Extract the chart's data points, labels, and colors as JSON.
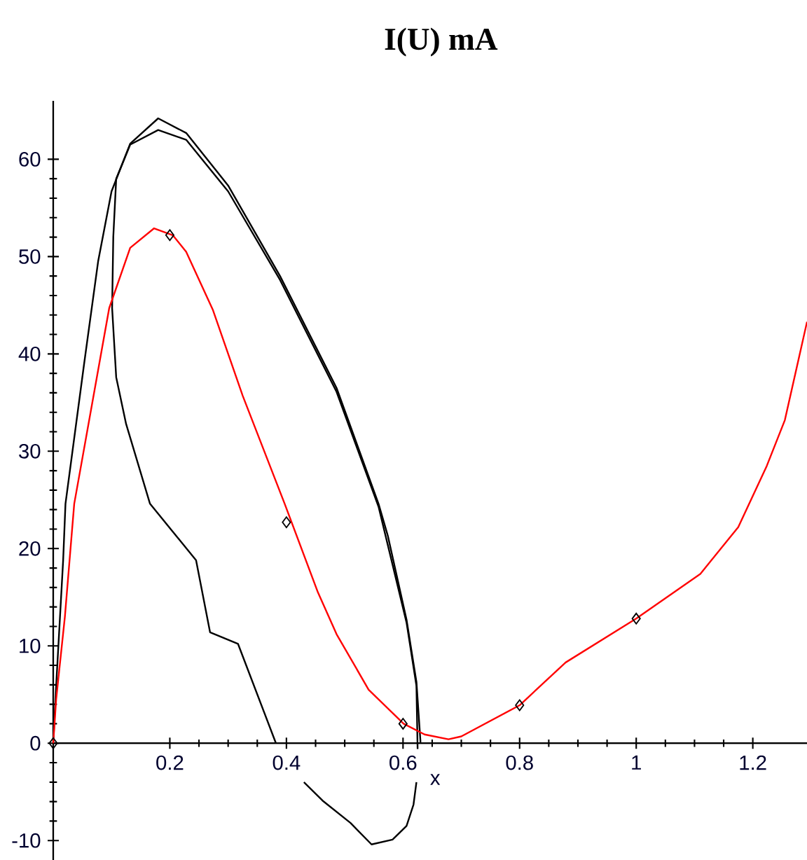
{
  "chart_data": {
    "type": "line",
    "title": "**I(U) mA**",
    "xlabel": "x",
    "xlim": [
      0,
      1.3
    ],
    "ylim": [
      -12,
      66
    ],
    "xticks": [
      0.2,
      0.4,
      0.6,
      0.8,
      1,
      1.2
    ],
    "yticks": [
      -10,
      0,
      10,
      20,
      30,
      40,
      50,
      60
    ],
    "series": [
      {
        "color": "#000000",
        "x": [
          0,
          0.005,
          0.017,
          0.021,
          0.053,
          0.077,
          0.1,
          0.132,
          0.18,
          0.228,
          0.3,
          0.389,
          0.486,
          0.558,
          0.574,
          0.606,
          0.623,
          0.63
        ],
        "values": [
          0,
          5.9,
          18.8,
          24.6,
          39,
          49.5,
          56.7,
          61.6,
          64.2,
          62.7,
          57.3,
          48,
          36.5,
          24.6,
          21.3,
          12.7,
          6.3,
          0.1
        ]
      },
      {
        "color": "#000000",
        "x": [
          0.382,
          0.317,
          0.269,
          0.245,
          0.166,
          0.125,
          0.108,
          0.101,
          0.103,
          0.108,
          0.132,
          0.18,
          0.228,
          0.3,
          0.389,
          0.486,
          0.558,
          0.606,
          0.623,
          0.625
        ],
        "values": [
          0,
          10.2,
          11.4,
          18.8,
          24.6,
          32.8,
          37.6,
          44.7,
          52,
          58,
          61.5,
          63,
          62,
          56.7,
          47.6,
          36.1,
          24.3,
          12.4,
          5.9,
          -0.6
        ]
      },
      {
        "color": "#000000",
        "x": [
          0.43,
          0.462,
          0.51,
          0.546,
          0.582,
          0.606,
          0.618,
          0.623
        ],
        "values": [
          -4,
          -5.9,
          -8.2,
          -10.4,
          -9.9,
          -8.5,
          -6.3,
          -4
        ]
      },
      {
        "color": "#ff0000",
        "x": [
          0,
          0.005,
          0.02,
          0.036,
          0.096,
          0.132,
          0.173,
          0.205,
          0.228,
          0.274,
          0.325,
          0.397,
          0.454,
          0.486,
          0.541,
          0.601,
          0.637,
          0.678,
          0.7,
          0.8,
          0.879,
          1,
          1.11,
          1.175,
          1.224,
          1.255,
          1.293
        ],
        "values": [
          0,
          4.5,
          13,
          24.6,
          44.7,
          50.9,
          52.9,
          52.2,
          50.5,
          44.5,
          35.7,
          24.6,
          15.5,
          11.2,
          5.5,
          2,
          0.9,
          0.4,
          0.7,
          3.9,
          8.3,
          12.8,
          17.4,
          22.2,
          28.5,
          33.2,
          43.3
        ]
      },
      {
        "type": "scatter",
        "color": "#000000",
        "marker": "diamond",
        "x": [
          0,
          0.2,
          0.4,
          0.6,
          0.8,
          1
        ],
        "values": [
          0,
          52.2,
          22.7,
          2,
          3.9,
          12.8
        ]
      }
    ]
  }
}
